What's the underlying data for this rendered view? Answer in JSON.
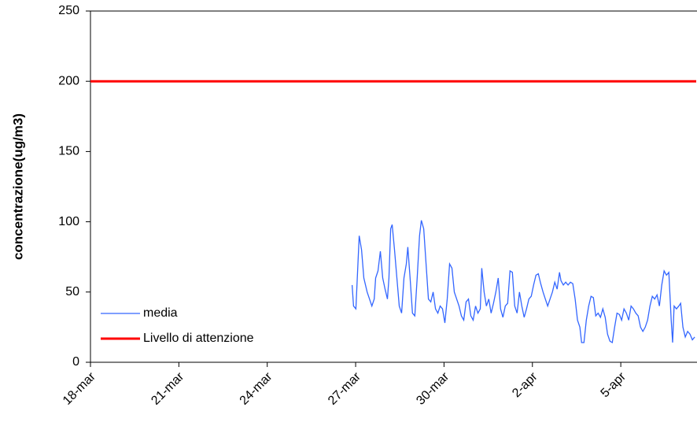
{
  "chart_data": {
    "type": "line",
    "ylabel": "concentrazione(ug/m3)",
    "ylim": [
      0,
      250
    ],
    "yticks": [
      0,
      50,
      100,
      150,
      200,
      250
    ],
    "xlim": [
      0,
      20.56
    ],
    "xticks": [
      {
        "value": 0,
        "label": "18-mar"
      },
      {
        "value": 3,
        "label": "21-mar"
      },
      {
        "value": 6,
        "label": "24-mar"
      },
      {
        "value": 9,
        "label": "27-mar"
      },
      {
        "value": 12,
        "label": "30-mar"
      },
      {
        "value": 15,
        "label": "2-apr"
      },
      {
        "value": 18,
        "label": "5-apr"
      }
    ],
    "legend": "lower left",
    "series": [
      {
        "name": "media",
        "color": "#3366ff",
        "x": [
          8.88,
          8.93,
          9.01,
          9.12,
          9.2,
          9.28,
          9.39,
          9.47,
          9.55,
          9.63,
          9.68,
          9.76,
          9.84,
          9.92,
          10.0,
          10.08,
          10.13,
          10.19,
          10.24,
          10.32,
          10.4,
          10.48,
          10.56,
          10.64,
          10.72,
          10.77,
          10.85,
          10.93,
          11.01,
          11.09,
          11.17,
          11.23,
          11.31,
          11.39,
          11.47,
          11.55,
          11.63,
          11.71,
          11.79,
          11.87,
          11.95,
          12.03,
          12.11,
          12.19,
          12.27,
          12.35,
          12.43,
          12.51,
          12.59,
          12.67,
          12.75,
          12.83,
          12.91,
          12.99,
          13.07,
          13.15,
          13.23,
          13.28,
          13.36,
          13.44,
          13.52,
          13.6,
          13.68,
          13.76,
          13.84,
          13.92,
          14.0,
          14.08,
          14.16,
          14.24,
          14.32,
          14.4,
          14.48,
          14.56,
          14.64,
          14.72,
          14.8,
          14.88,
          14.96,
          15.04,
          15.12,
          15.2,
          15.28,
          15.36,
          15.44,
          15.52,
          15.6,
          15.68,
          15.76,
          15.84,
          15.92,
          15.97,
          16.05,
          16.13,
          16.21,
          16.29,
          16.37,
          16.45,
          16.53,
          16.61,
          16.67,
          16.75,
          16.83,
          16.91,
          16.99,
          17.07,
          17.15,
          17.23,
          17.31,
          17.39,
          17.47,
          17.55,
          17.63,
          17.71,
          17.79,
          17.87,
          17.95,
          18.03,
          18.11,
          18.19,
          18.27,
          18.35,
          18.43,
          18.51,
          18.59,
          18.67,
          18.75,
          18.83,
          18.91,
          18.99,
          19.07,
          19.15,
          19.23,
          19.31,
          19.39,
          19.47,
          19.55,
          19.63,
          19.71,
          19.76,
          19.81,
          19.89,
          19.97,
          20.03,
          20.11,
          20.19,
          20.27,
          20.35,
          20.43,
          20.51
        ],
        "values": [
          55,
          40,
          38,
          90,
          80,
          60,
          50,
          45,
          40,
          45,
          60,
          65,
          79,
          60,
          52,
          45,
          60,
          95,
          98,
          80,
          60,
          40,
          35,
          60,
          70,
          82,
          60,
          35,
          33,
          60,
          90,
          101,
          95,
          70,
          45,
          43,
          50,
          38,
          35,
          40,
          38,
          28,
          45,
          70,
          67,
          50,
          45,
          40,
          33,
          30,
          43,
          45,
          33,
          30,
          40,
          35,
          38,
          67,
          50,
          40,
          45,
          35,
          42,
          50,
          60,
          38,
          32,
          40,
          42,
          65,
          64,
          40,
          35,
          50,
          40,
          32,
          38,
          45,
          47,
          55,
          62,
          63,
          56,
          50,
          45,
          40,
          45,
          50,
          57,
          52,
          64,
          58,
          55,
          57,
          55,
          57,
          56,
          45,
          30,
          25,
          14,
          14,
          30,
          40,
          47,
          46,
          33,
          35,
          32,
          38,
          32,
          20,
          15,
          14,
          25,
          35,
          34,
          30,
          38,
          35,
          30,
          40,
          38,
          35,
          33,
          25,
          22,
          25,
          30,
          40,
          47,
          45,
          48,
          40,
          55,
          65,
          62,
          64,
          30,
          14,
          40,
          38,
          40,
          42,
          25,
          18,
          22,
          20,
          16,
          18
        ]
      },
      {
        "name": "Livello di attenzione",
        "color": "#ff0000",
        "x": [
          0,
          20.56
        ],
        "values": [
          200,
          200
        ]
      }
    ]
  }
}
